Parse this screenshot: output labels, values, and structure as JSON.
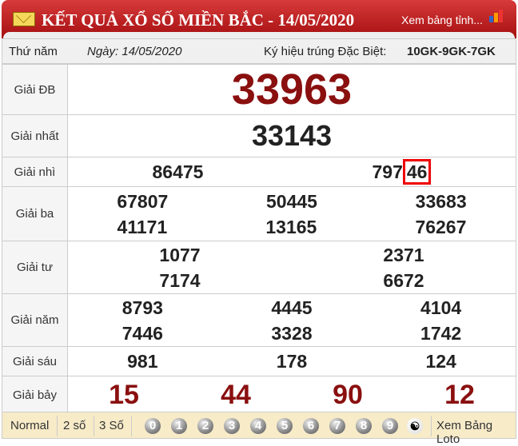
{
  "header": {
    "title": "KẾT QUẢ XỔ SỐ MIỀN BẮC - 14/05/2020",
    "more_link": "Xem bảng tỉnh...",
    "icon": "mail-icon"
  },
  "info": {
    "weekday": "Thứ năm",
    "date": "Ngày: 14/05/2020",
    "special_label": "Ký hiệu trúng Đặc Biệt:",
    "special_code": "10GK-9GK-7GK"
  },
  "prizes": {
    "db": {
      "label": "Giải ĐB",
      "numbers": [
        "33963"
      ]
    },
    "g1": {
      "label": "Giải nhất",
      "numbers": [
        "33143"
      ]
    },
    "g2": {
      "label": "Giải nhì",
      "numbers": [
        "86475",
        "79746"
      ],
      "highlight_prefix": "797",
      "highlight_suffix": "46"
    },
    "g3": {
      "label": "Giải ba",
      "numbers": [
        "67807",
        "50445",
        "33683",
        "41171",
        "13165",
        "76267"
      ]
    },
    "g4": {
      "label": "Giải tư",
      "numbers": [
        "1077",
        "2371",
        "7174",
        "6672"
      ]
    },
    "g5": {
      "label": "Giải năm",
      "numbers": [
        "8793",
        "4445",
        "4104",
        "7446",
        "3328",
        "1742"
      ]
    },
    "g6": {
      "label": "Giải sáu",
      "numbers": [
        "981",
        "178",
        "124"
      ]
    },
    "g7": {
      "label": "Giải bảy",
      "numbers": [
        "15",
        "44",
        "90",
        "12"
      ]
    }
  },
  "footer": {
    "modes": [
      "Normal",
      "2 số",
      "3 Số"
    ],
    "digits": [
      "0",
      "1",
      "2",
      "3",
      "4",
      "5",
      "6",
      "7",
      "8",
      "9"
    ],
    "yinyang": "☯",
    "loto": "Xem Bảng Loto"
  },
  "colors": {
    "header": "#b81c1c",
    "prize_red": "#8a0f0f",
    "highlight": "#e00000",
    "footer_bg": "#f7ebc8"
  }
}
